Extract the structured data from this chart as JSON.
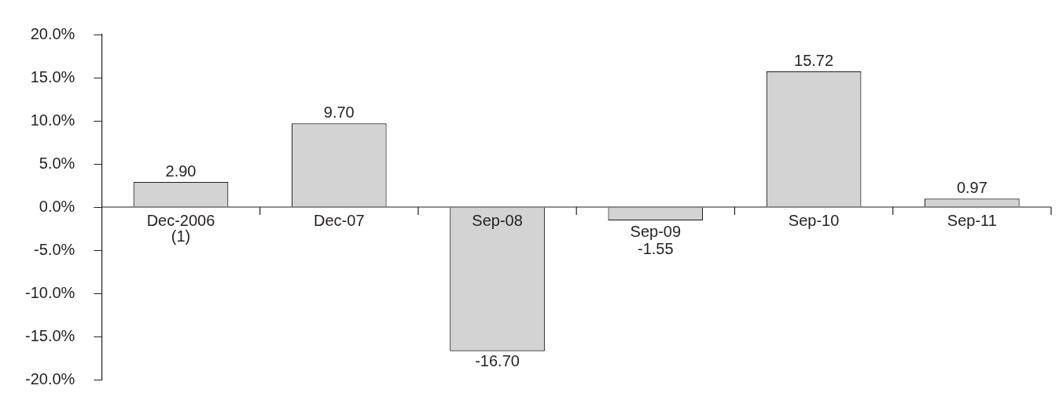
{
  "chart_data": {
    "type": "bar",
    "categories": [
      "Dec-2006 (1)",
      "Dec-07",
      "Sep-08",
      "Sep-09",
      "Sep-10",
      "Sep-11"
    ],
    "values": [
      2.9,
      9.7,
      -16.7,
      -1.55,
      15.72,
      0.97
    ],
    "value_labels": [
      "2.90",
      "9.70",
      "-16.70",
      "-1.55",
      "15.72",
      "0.97"
    ],
    "color": "#d3d3d3",
    "ylim": [
      -20,
      20
    ],
    "yticks": [
      {
        "value": -20,
        "label": "-20.0%"
      },
      {
        "value": -15,
        "label": "-15.0%"
      },
      {
        "value": -10,
        "label": "-10.0%"
      },
      {
        "value": -5,
        "label": "-5.0%"
      },
      {
        "value": 0,
        "label": "0.0%"
      },
      {
        "value": 5,
        "label": "5.0%"
      },
      {
        "value": 10,
        "label": "10.0%"
      },
      {
        "value": 15,
        "label": "15.0%"
      },
      {
        "value": 20,
        "label": "20.0%"
      }
    ],
    "grid": false,
    "legend": false
  }
}
